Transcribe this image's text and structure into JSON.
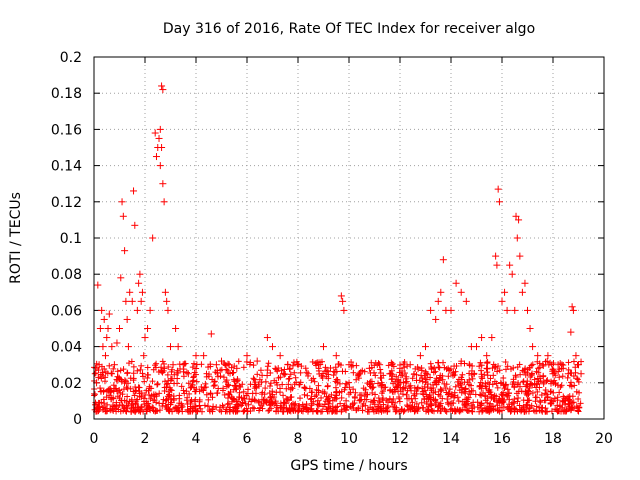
{
  "chart_data": {
    "type": "scatter",
    "title": "Day 316 of 2016, Rate Of TEC Index for receiver algo",
    "xlabel": "GPS time / hours",
    "ylabel": "ROTI / TECUs",
    "xlim": [
      0,
      20
    ],
    "ylim": [
      0,
      0.2
    ],
    "xticks": [
      0,
      2,
      4,
      6,
      8,
      10,
      12,
      14,
      16,
      18,
      20
    ],
    "xtick_labels": [
      "0",
      "2",
      "4",
      "6",
      "8",
      "10",
      "12",
      "14",
      "16",
      "18",
      "20"
    ],
    "yticks": [
      0,
      0.02,
      0.04,
      0.06,
      0.08,
      0.1,
      0.12,
      0.14,
      0.16,
      0.18,
      0.2
    ],
    "ytick_labels": [
      "0",
      "0.02",
      "0.04",
      "0.06",
      "0.08",
      "0.1",
      "0.12",
      "0.14",
      "0.16",
      "0.18",
      "0.2"
    ],
    "grid": true,
    "marker": "+",
    "color": "#ff0000",
    "series": [
      {
        "x": [
          0.1,
          0.15,
          0.2,
          0.25,
          0.3,
          0.35,
          0.4,
          0.45,
          0.5,
          0.55,
          0.6,
          0.7,
          0.8,
          0.9,
          1.0,
          1.05,
          1.1,
          1.15,
          1.2,
          1.25,
          1.3,
          1.35,
          1.4,
          1.5,
          1.55,
          1.6,
          1.7,
          1.75,
          1.8,
          1.85,
          1.9,
          1.95,
          2.0,
          2.1,
          2.2,
          2.3,
          2.4,
          2.45,
          2.5,
          2.55,
          2.6,
          2.6,
          2.65,
          2.65,
          2.7,
          2.7,
          2.75,
          2.8,
          2.85,
          2.9,
          3.0,
          3.1,
          3.2,
          3.3,
          3.5,
          3.7,
          4.0,
          4.3,
          4.6,
          4.8,
          5.0,
          5.3,
          5.6,
          6.0,
          6.4,
          6.8,
          7.0,
          7.3,
          7.6,
          8.0,
          8.4,
          8.8,
          9.0,
          9.5,
          9.7,
          9.75,
          9.8,
          10.0,
          10.4,
          10.8,
          11.2,
          11.6,
          12.0,
          12.4,
          12.8,
          13.0,
          13.2,
          13.4,
          13.5,
          13.6,
          13.7,
          13.8,
          14.0,
          14.2,
          14.4,
          14.6,
          14.8,
          15.0,
          15.2,
          15.4,
          15.6,
          15.75,
          15.8,
          15.85,
          15.9,
          16.0,
          16.1,
          16.2,
          16.3,
          16.4,
          16.5,
          16.55,
          16.6,
          16.65,
          16.7,
          16.8,
          16.9,
          17.0,
          17.1,
          17.2,
          17.4,
          17.6,
          17.8,
          18.0,
          18.2,
          18.4,
          18.6,
          18.7,
          18.75,
          18.8,
          18.9,
          19.0,
          19.1
        ],
        "y": [
          0.02,
          0.074,
          0.03,
          0.05,
          0.06,
          0.04,
          0.055,
          0.035,
          0.045,
          0.05,
          0.058,
          0.04,
          0.03,
          0.042,
          0.05,
          0.078,
          0.12,
          0.112,
          0.093,
          0.065,
          0.055,
          0.04,
          0.07,
          0.065,
          0.126,
          0.107,
          0.06,
          0.075,
          0.08,
          0.065,
          0.07,
          0.035,
          0.045,
          0.05,
          0.06,
          0.1,
          0.158,
          0.145,
          0.15,
          0.155,
          0.16,
          0.14,
          0.184,
          0.15,
          0.182,
          0.13,
          0.12,
          0.07,
          0.065,
          0.06,
          0.04,
          0.03,
          0.05,
          0.04,
          0.03,
          0.025,
          0.035,
          0.035,
          0.047,
          0.03,
          0.032,
          0.03,
          0.028,
          0.035,
          0.032,
          0.045,
          0.04,
          0.035,
          0.03,
          0.03,
          0.025,
          0.03,
          0.04,
          0.035,
          0.068,
          0.065,
          0.06,
          0.03,
          0.025,
          0.028,
          0.03,
          0.025,
          0.028,
          0.03,
          0.035,
          0.04,
          0.06,
          0.055,
          0.065,
          0.07,
          0.088,
          0.06,
          0.06,
          0.075,
          0.07,
          0.065,
          0.04,
          0.04,
          0.045,
          0.035,
          0.045,
          0.09,
          0.085,
          0.127,
          0.12,
          0.065,
          0.07,
          0.06,
          0.085,
          0.08,
          0.06,
          0.112,
          0.1,
          0.11,
          0.09,
          0.07,
          0.075,
          0.06,
          0.05,
          0.04,
          0.035,
          0.03,
          0.035,
          0.025,
          0.03,
          0.028,
          0.025,
          0.048,
          0.062,
          0.06,
          0.035,
          0.03,
          0.025
        ]
      }
    ]
  }
}
